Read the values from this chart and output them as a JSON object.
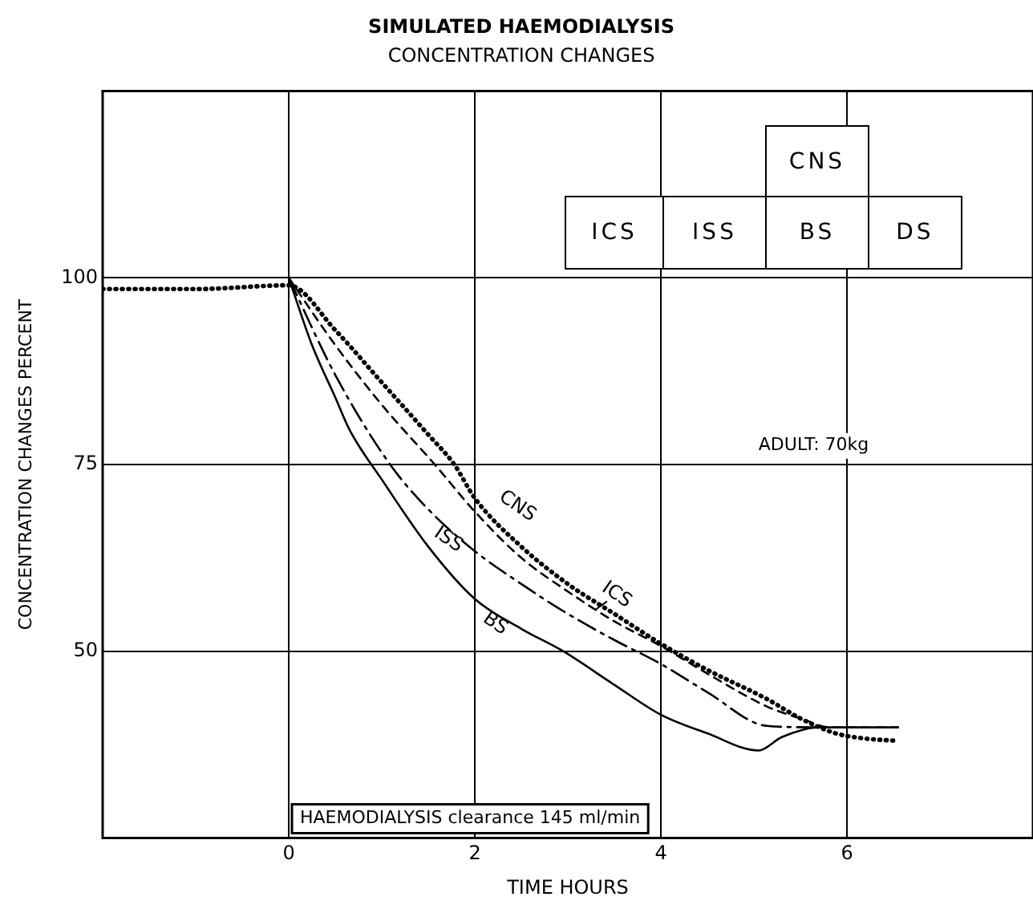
{
  "chart_data": {
    "type": "line",
    "title": "SIMULATED HAEMODIALYSIS",
    "subtitle": "CONCENTRATION CHANGES",
    "xlabel": "TIME HOURS",
    "ylabel": "CONCENTRATION CHANGES PERCENT",
    "xlim": [
      -2,
      8
    ],
    "xticks": [
      0,
      2,
      4,
      6
    ],
    "ylim": [
      25,
      125
    ],
    "yticks": [
      50,
      75,
      100
    ],
    "grid": true,
    "legend": false,
    "marker": "none",
    "annotations": [
      "ICS",
      "ISS",
      "BS",
      "DS",
      "CNS",
      "ADULT: 70kg",
      "HAEMODIALYSIS clearance 145 ml/min"
    ],
    "series": [
      {
        "name": "CNS",
        "color": "#000000",
        "line_style": "dotted",
        "x": [
          -2,
          -1,
          0,
          0.5,
          1,
          1.5,
          1.78,
          2,
          2.5,
          3,
          3.5,
          4,
          4.5,
          5.14,
          5.5,
          5.88,
          6.2,
          6.55
        ],
        "values": [
          98.5,
          98.5,
          99,
          93,
          86,
          79,
          75,
          70.5,
          64,
          59,
          55,
          51,
          47.5,
          43.6,
          41,
          39,
          38.3,
          38
        ]
      },
      {
        "name": "ICS",
        "color": "#000000",
        "line_style": "dashed",
        "x": [
          0,
          0.5,
          1,
          1.57,
          2,
          2.5,
          3,
          3.5,
          4,
          4.5,
          5.14,
          5.5,
          5.83,
          6.55
        ],
        "values": [
          100,
          91,
          83,
          75,
          68.7,
          62.5,
          58,
          54,
          50.7,
          47,
          42.6,
          41,
          39.8,
          39.8
        ]
      },
      {
        "name": "ISS",
        "color": "#000000",
        "line_style": "dashdot",
        "x": [
          0,
          0.5,
          1.09,
          1.5,
          2,
          2.5,
          3,
          3.5,
          4,
          4.5,
          5.14,
          5.7
        ],
        "values": [
          100,
          87,
          75,
          69,
          63.4,
          59,
          55,
          51.5,
          48.3,
          44.5,
          40,
          39.8
        ]
      },
      {
        "name": "BS",
        "color": "#000000",
        "line_style": "solid",
        "x": [
          0,
          0.25,
          0.5,
          0.66,
          1,
          1.5,
          2,
          2.5,
          2.95,
          3.5,
          4,
          4.5,
          5.05,
          5.3,
          5.7,
          6.55
        ],
        "values": [
          100,
          91,
          84,
          79.5,
          73,
          64,
          57,
          53,
          50,
          45.5,
          41.5,
          39,
          36.7,
          38.5,
          39.8,
          39.8
        ]
      }
    ]
  }
}
